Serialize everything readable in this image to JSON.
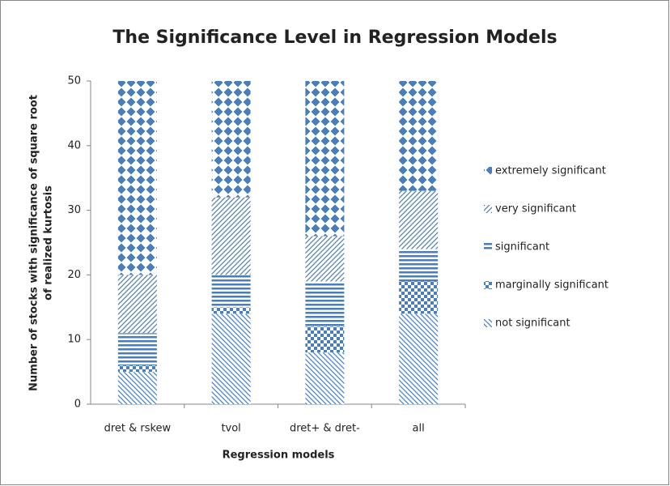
{
  "chart_data": {
    "type": "stacked_bar",
    "title": "The Significance Level in Regression Models",
    "x_label": "Regression models",
    "y_label": [
      "Number of stocks with significance  of square root",
      "of realized kurtosis"
    ],
    "categories": [
      "dret & rskew",
      "tvol",
      "dret+ & dret-",
      "all"
    ],
    "series": [
      {
        "name": "not significant",
        "color": "#4a7ebb",
        "values": [
          5,
          14,
          8,
          14
        ]
      },
      {
        "name": "marginally significant",
        "color": "#4a7ebb",
        "values": [
          1,
          1,
          4,
          5
        ]
      },
      {
        "name": "significant",
        "color": "#4a7ebb",
        "values": [
          5,
          5,
          7,
          5
        ]
      },
      {
        "name": "very significant",
        "color": "#4a7ebb",
        "values": [
          9,
          12,
          7,
          9
        ]
      },
      {
        "name": "extremely significant",
        "color": "#4a7ebb",
        "values": [
          30,
          18,
          24,
          17
        ]
      }
    ],
    "ylim": [
      0,
      50
    ],
    "yticks": [
      0,
      10,
      20,
      30,
      40,
      50
    ],
    "grid": false,
    "legend": "right"
  }
}
